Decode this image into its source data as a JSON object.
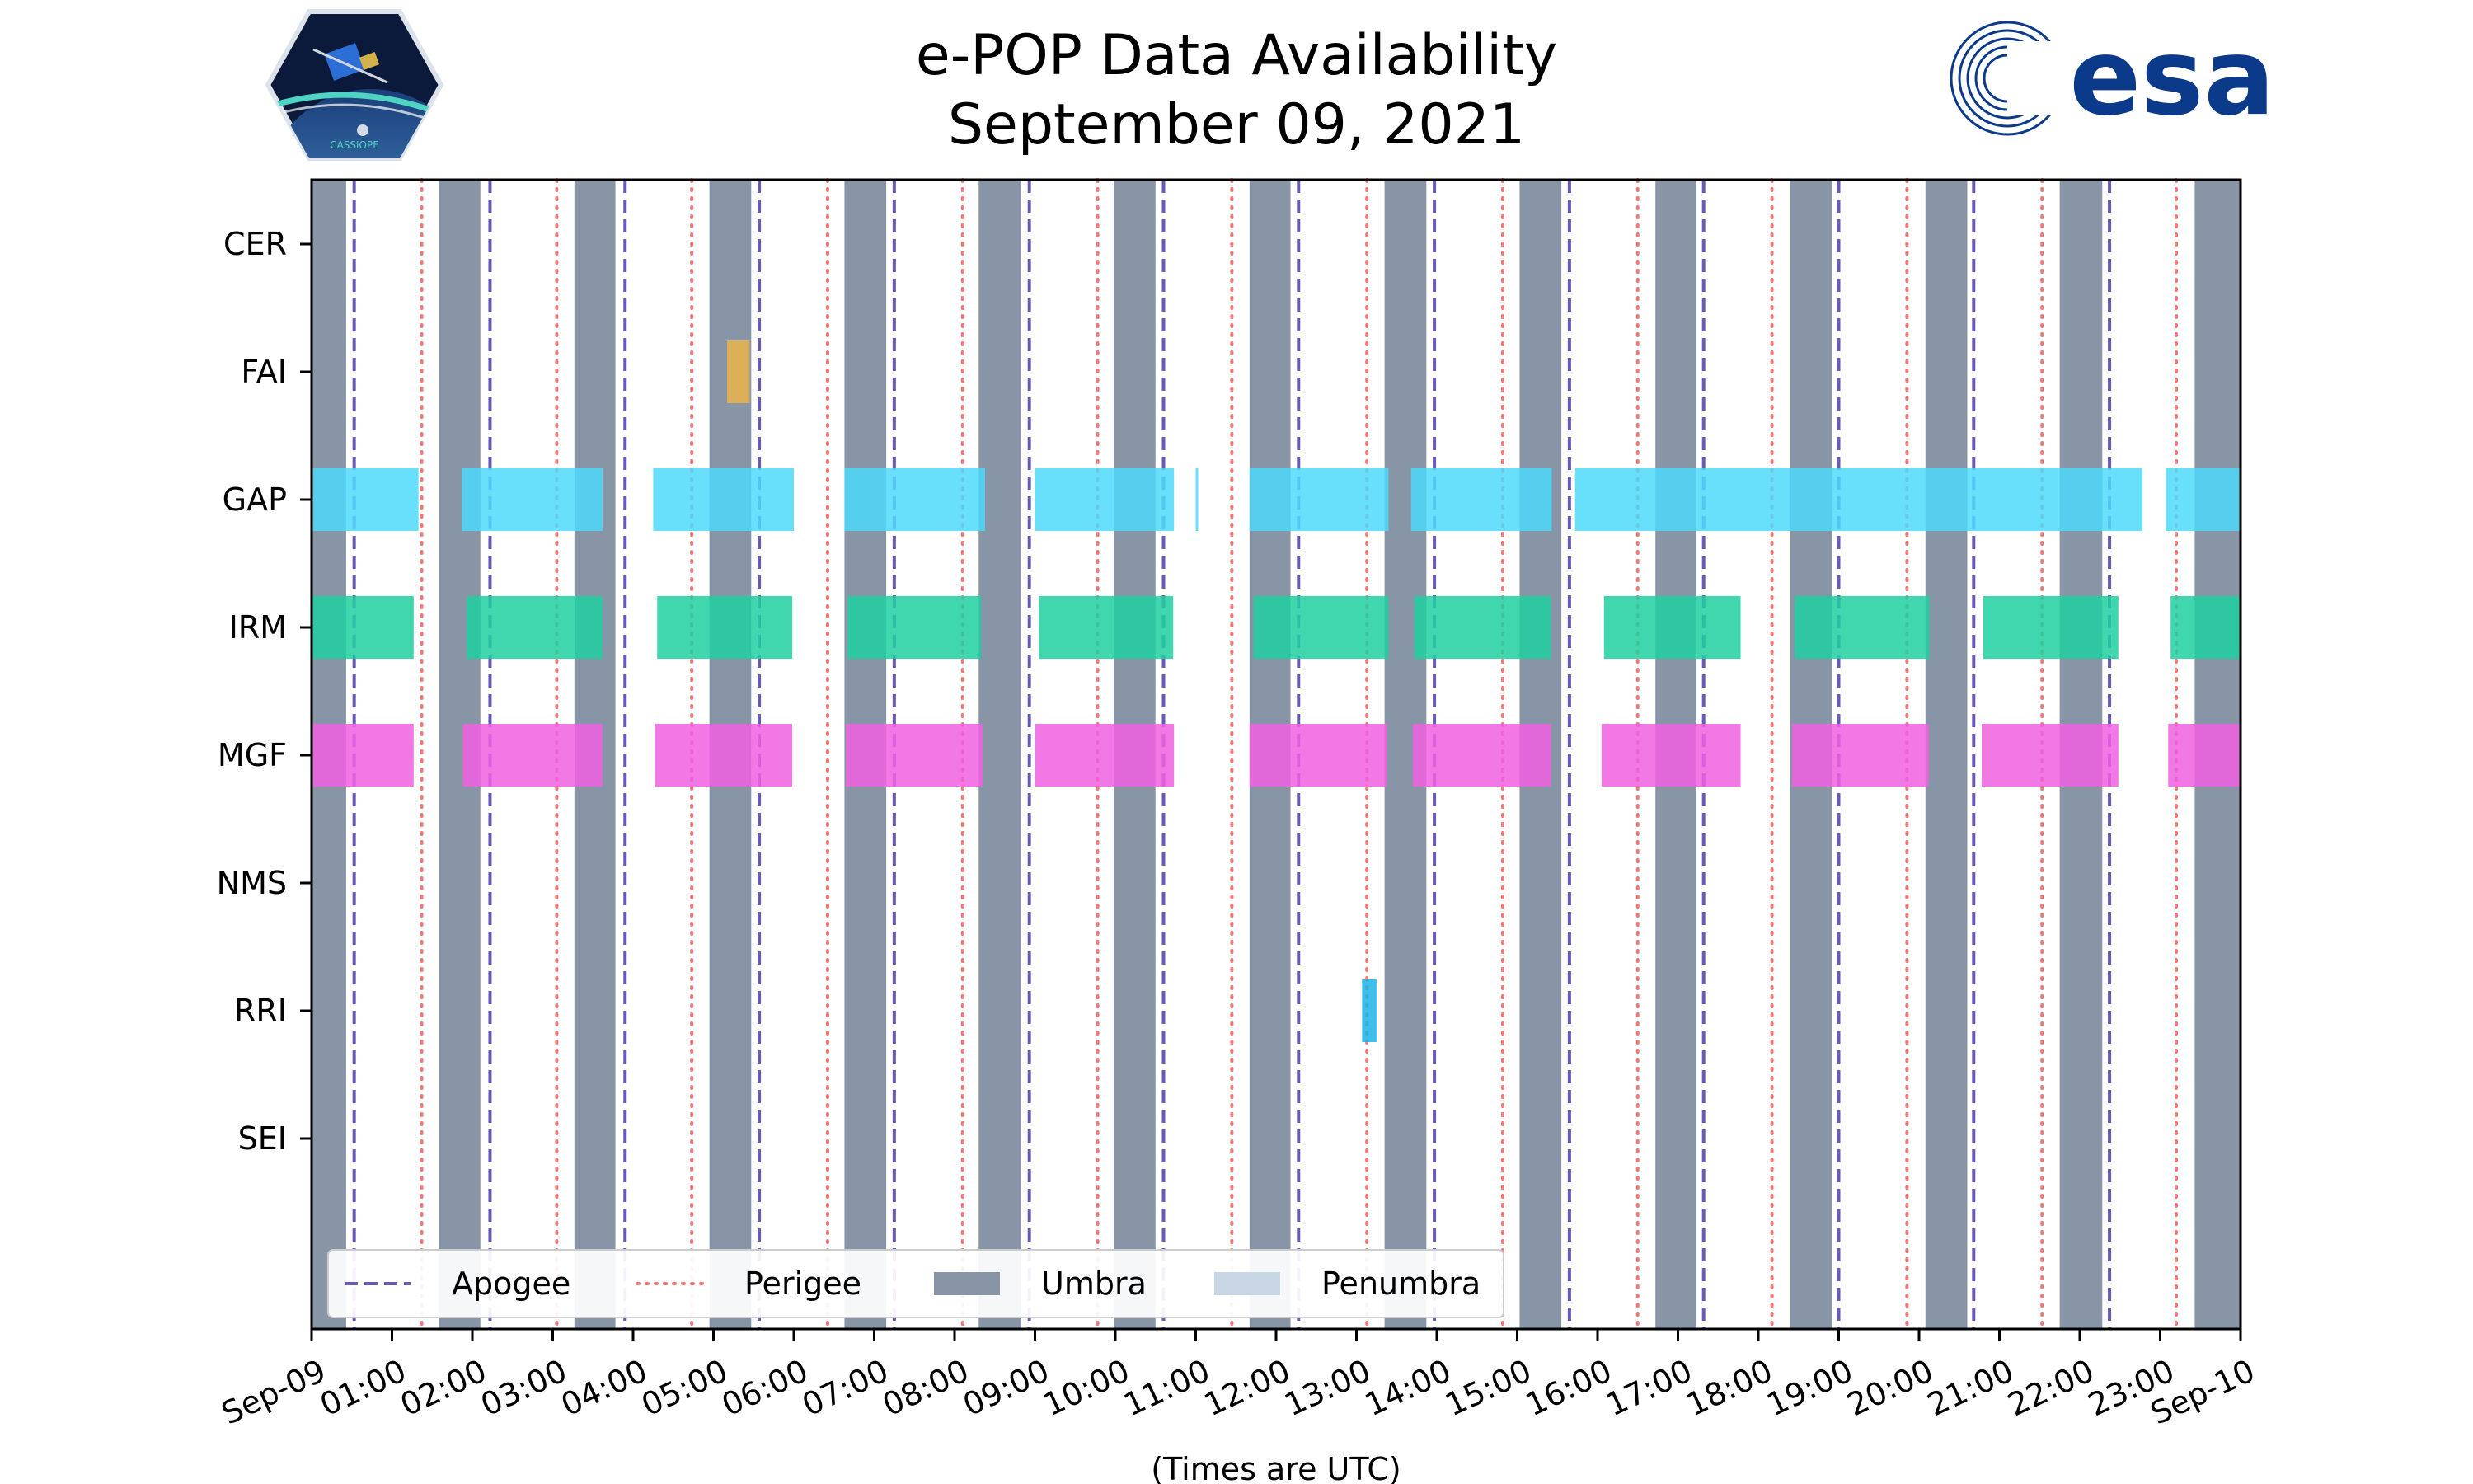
{
  "chart_data": {
    "type": "timeline",
    "title": "e-POP Data Availability",
    "subtitle": "September 09, 2021",
    "xlabel": "(Times are UTC)",
    "x_range_hours": [
      0,
      24
    ],
    "x_ticks": [
      {
        "hour": 0,
        "label": "Sep-09"
      },
      {
        "hour": 1,
        "label": "01:00"
      },
      {
        "hour": 2,
        "label": "02:00"
      },
      {
        "hour": 3,
        "label": "03:00"
      },
      {
        "hour": 4,
        "label": "04:00"
      },
      {
        "hour": 5,
        "label": "05:00"
      },
      {
        "hour": 6,
        "label": "06:00"
      },
      {
        "hour": 7,
        "label": "07:00"
      },
      {
        "hour": 8,
        "label": "08:00"
      },
      {
        "hour": 9,
        "label": "09:00"
      },
      {
        "hour": 10,
        "label": "10:00"
      },
      {
        "hour": 11,
        "label": "11:00"
      },
      {
        "hour": 12,
        "label": "12:00"
      },
      {
        "hour": 13,
        "label": "13:00"
      },
      {
        "hour": 14,
        "label": "14:00"
      },
      {
        "hour": 15,
        "label": "15:00"
      },
      {
        "hour": 16,
        "label": "16:00"
      },
      {
        "hour": 17,
        "label": "17:00"
      },
      {
        "hour": 18,
        "label": "18:00"
      },
      {
        "hour": 19,
        "label": "19:00"
      },
      {
        "hour": 20,
        "label": "20:00"
      },
      {
        "hour": 21,
        "label": "21:00"
      },
      {
        "hour": 22,
        "label": "22:00"
      },
      {
        "hour": 23,
        "label": "23:00"
      },
      {
        "hour": 24,
        "label": "Sep-10"
      }
    ],
    "instruments": [
      "CER",
      "FAI",
      "GAP",
      "IRM",
      "MGF",
      "NMS",
      "RRI",
      "SEI"
    ],
    "umbra": [
      [
        0,
        0.43
      ],
      [
        1.58,
        2.1
      ],
      [
        3.27,
        3.78
      ],
      [
        4.95,
        5.47
      ],
      [
        6.63,
        7.15
      ],
      [
        8.3,
        8.83
      ],
      [
        9.98,
        10.5
      ],
      [
        11.67,
        12.18
      ],
      [
        13.35,
        13.87
      ],
      [
        15.03,
        15.55
      ],
      [
        16.72,
        17.23
      ],
      [
        18.4,
        18.92
      ],
      [
        20.08,
        20.6
      ],
      [
        21.75,
        22.28
      ],
      [
        23.43,
        24
      ]
    ],
    "apogee": [
      0.53,
      2.22,
      3.9,
      5.57,
      7.25,
      8.93,
      10.6,
      12.28,
      13.97,
      15.65,
      17.32,
      19.0,
      20.68,
      22.37,
      24.03
    ],
    "perigee": [
      1.37,
      3.05,
      4.73,
      6.42,
      8.1,
      9.78,
      11.45,
      13.13,
      14.82,
      16.5,
      18.17,
      19.85,
      21.53,
      23.2
    ],
    "series": [
      {
        "name": "CER",
        "color": "#f5a623",
        "intervals": []
      },
      {
        "name": "FAI",
        "color": "#ebb54a",
        "intervals": [
          [
            5.17,
            5.45
          ]
        ]
      },
      {
        "name": "GAP",
        "color": "#4dd9fa",
        "intervals": [
          [
            0,
            1.33
          ],
          [
            1.87,
            3.62
          ],
          [
            4.25,
            6.0
          ],
          [
            6.63,
            8.38
          ],
          [
            9.0,
            10.73
          ],
          [
            11.0,
            11.02
          ],
          [
            11.67,
            13.4
          ],
          [
            13.68,
            15.43
          ],
          [
            15.72,
            22.78
          ],
          [
            23.07,
            24
          ]
        ]
      },
      {
        "name": "IRM",
        "color": "#20d0a0",
        "intervals": [
          [
            0,
            1.27
          ],
          [
            1.93,
            3.62
          ],
          [
            4.3,
            5.98
          ],
          [
            6.67,
            8.33
          ],
          [
            9.05,
            10.72
          ],
          [
            11.72,
            13.4
          ],
          [
            13.72,
            15.42
          ],
          [
            16.08,
            17.78
          ],
          [
            18.45,
            20.13
          ],
          [
            20.8,
            22.48
          ],
          [
            23.13,
            24
          ]
        ]
      },
      {
        "name": "MGF",
        "color": "#f060e0",
        "intervals": [
          [
            0,
            1.27
          ],
          [
            1.88,
            3.62
          ],
          [
            4.27,
            5.98
          ],
          [
            6.65,
            8.35
          ],
          [
            9.0,
            10.73
          ],
          [
            11.67,
            13.38
          ],
          [
            13.7,
            15.42
          ],
          [
            16.05,
            17.78
          ],
          [
            18.42,
            20.12
          ],
          [
            20.78,
            22.48
          ],
          [
            23.1,
            24
          ]
        ]
      },
      {
        "name": "NMS",
        "color": "#888888",
        "intervals": []
      },
      {
        "name": "RRI",
        "color": "#1ab4e6",
        "intervals": [
          [
            13.07,
            13.25
          ]
        ]
      },
      {
        "name": "SEI",
        "color": "#888888",
        "intervals": []
      }
    ],
    "legend": {
      "position": "lower-left",
      "entries": [
        {
          "label": "Apogee",
          "style": "dashed",
          "color": "#6a5ab8"
        },
        {
          "label": "Perigee",
          "style": "dotted",
          "color": "#f07878"
        },
        {
          "label": "Umbra",
          "style": "patch",
          "color": "#8795a6"
        },
        {
          "label": "Penumbra",
          "style": "patch",
          "color": "#c9d6e6"
        }
      ]
    }
  },
  "logos": {
    "left_text": "CASSIOPE",
    "right_text": "esa"
  }
}
